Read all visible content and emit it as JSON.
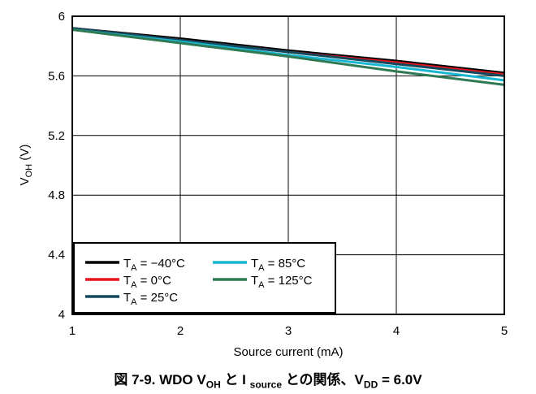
{
  "chart_data": {
    "type": "line",
    "xlabel": "Source current (mA)",
    "ylabel_main": "V",
    "ylabel_sub": "OH",
    "ylabel_unit": " (V)",
    "xlim": [
      1,
      5
    ],
    "ylim": [
      4,
      6
    ],
    "x_ticks": [
      "1",
      "2",
      "3",
      "4",
      "5"
    ],
    "y_ticks": [
      "4",
      "4.4",
      "4.8",
      "5.2",
      "5.6",
      "6"
    ],
    "x_tick_values": [
      1,
      2,
      3,
      4,
      5
    ],
    "y_tick_values": [
      4,
      4.4,
      4.8,
      5.2,
      5.6,
      6
    ],
    "grid": true,
    "legend_position": "bottom-left",
    "series": [
      {
        "name_main": "T",
        "name_sub": "A",
        "name_rest": " = −40°C",
        "color": "#000000",
        "x": [
          1,
          2,
          3,
          4,
          5
        ],
        "y": [
          5.92,
          5.85,
          5.77,
          5.7,
          5.62
        ]
      },
      {
        "name_main": "T",
        "name_sub": "A",
        "name_rest": " = 0°C",
        "color": "#e8141e",
        "x": [
          1,
          2,
          3,
          4,
          5
        ],
        "y": [
          5.92,
          5.84,
          5.76,
          5.69,
          5.61
        ]
      },
      {
        "name_main": "T",
        "name_sub": "A",
        "name_rest": " = 25°C",
        "color": "#13495d",
        "x": [
          1,
          2,
          3,
          4,
          5
        ],
        "y": [
          5.92,
          5.84,
          5.76,
          5.68,
          5.6
        ]
      },
      {
        "name_main": "T",
        "name_sub": "A",
        "name_rest": " = 85°C",
        "color": "#19b6d2",
        "x": [
          1,
          2,
          3,
          4,
          5
        ],
        "y": [
          5.91,
          5.83,
          5.74,
          5.66,
          5.57
        ]
      },
      {
        "name_main": "T",
        "name_sub": "A",
        "name_rest": " = 125°C",
        "color": "#2f7a52",
        "x": [
          1,
          2,
          3,
          4,
          5
        ],
        "y": [
          5.91,
          5.82,
          5.73,
          5.63,
          5.54
        ]
      }
    ]
  },
  "caption": {
    "prefix": "図 7-9. WDO V",
    "sub1": "OH",
    "mid1": " と I ",
    "sub2": "source",
    "mid2": " との関係、V",
    "sub3": "DD",
    "suffix": " = 6.0V"
  }
}
